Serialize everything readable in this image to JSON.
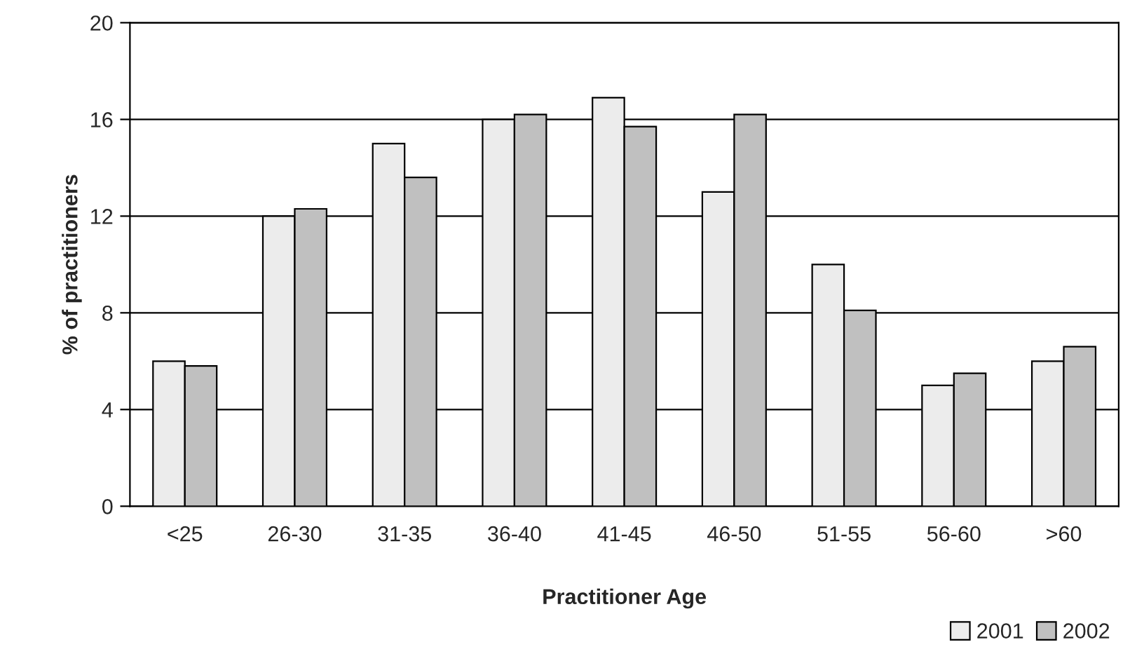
{
  "chart_data": {
    "type": "bar",
    "xlabel": "Practitioner Age",
    "ylabel": "% of practitioners",
    "categories": [
      "<25",
      "26-30",
      "31-35",
      "36-40",
      "41-45",
      "46-50",
      "51-55",
      "56-60",
      ">60"
    ],
    "series": [
      {
        "name": "2001",
        "color": "#ececec",
        "values": [
          6,
          12,
          15,
          16,
          16.9,
          13,
          10,
          5,
          6
        ]
      },
      {
        "name": "2002",
        "color": "#c0c0c0",
        "values": [
          5.8,
          12.3,
          13.6,
          16.2,
          15.7,
          16.2,
          8.1,
          5.5,
          6.6
        ]
      }
    ],
    "ylim": [
      0,
      20
    ],
    "yticks": [
      0,
      4,
      8,
      12,
      16,
      20
    ],
    "grid": "y",
    "legend": "bottom right"
  }
}
